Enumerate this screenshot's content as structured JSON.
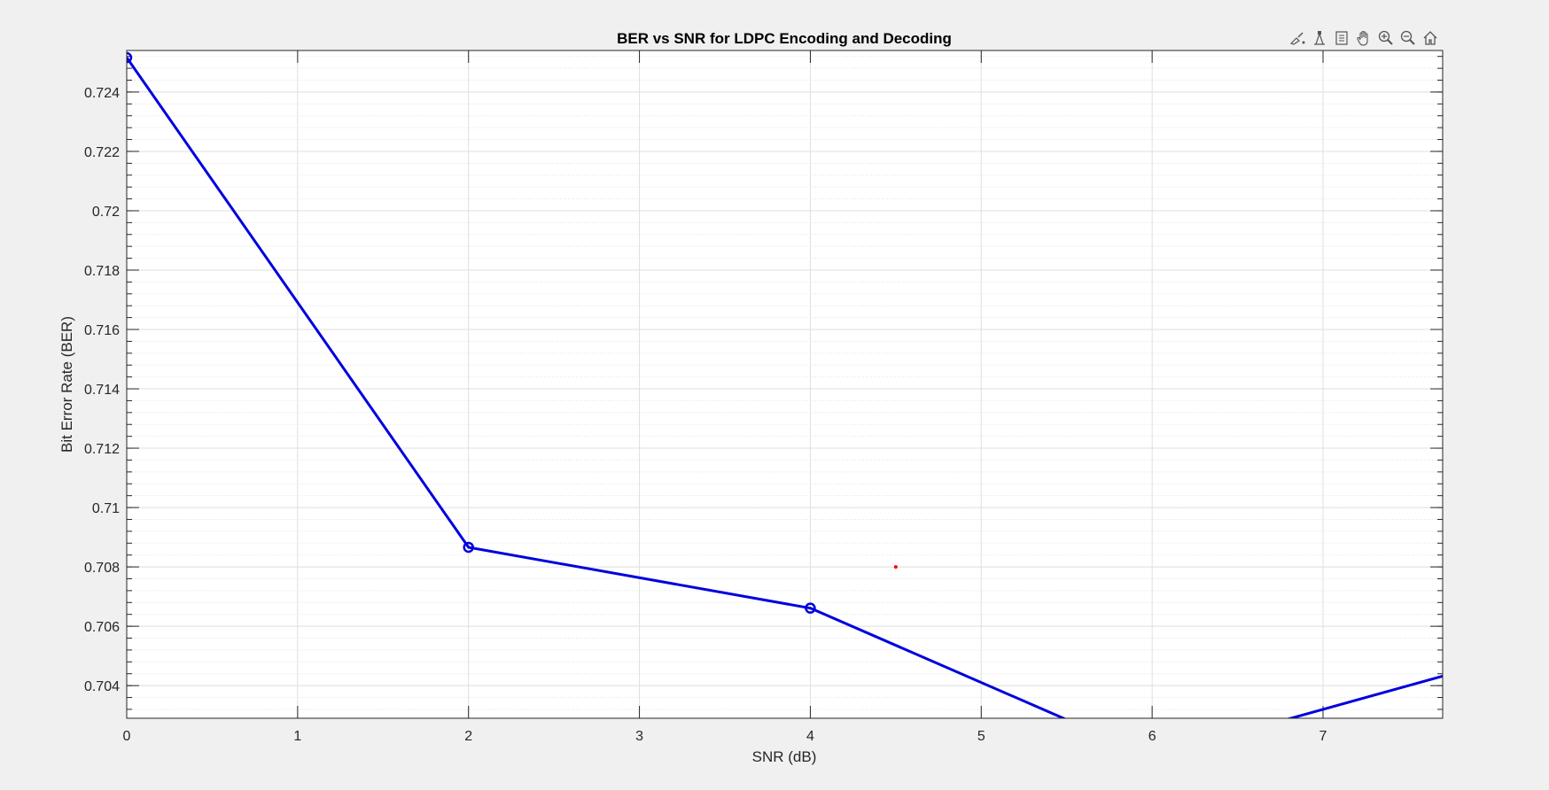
{
  "chart_data": {
    "type": "line",
    "title": "BER vs SNR for LDPC Encoding and Decoding",
    "xlabel": "SNR (dB)",
    "ylabel": "Bit Error Rate (BER)",
    "xlim": [
      0,
      7.7
    ],
    "ylim": [
      0.7029,
      0.7254
    ],
    "xticks": [
      0,
      1,
      2,
      3,
      4,
      5,
      6,
      7
    ],
    "yticks": [
      0.704,
      0.706,
      0.708,
      0.71,
      0.712,
      0.714,
      0.716,
      0.718,
      0.72,
      0.722,
      0.724
    ],
    "ytick_labels": [
      "0.704",
      "0.706",
      "0.708",
      "0.71",
      "0.712",
      "0.714",
      "0.716",
      "0.718",
      "0.72",
      "0.722",
      "0.724"
    ],
    "grid": true,
    "minor_grid": true,
    "series": [
      {
        "color": "#0000dd",
        "marker": "circle",
        "x": [
          0,
          2,
          4,
          6,
          8
        ],
        "y": [
          0.72516,
          0.70866,
          0.70661,
          0.7016,
          0.7048
        ]
      }
    ],
    "annotations": [
      {
        "type": "point",
        "x": 4.5,
        "y": 0.708,
        "color": "#ff0000"
      }
    ]
  },
  "toolbar": {
    "buttons": [
      {
        "name": "brush-icon"
      },
      {
        "name": "data-tips-icon"
      },
      {
        "name": "restore-view-icon"
      },
      {
        "name": "pan-icon"
      },
      {
        "name": "zoom-in-icon"
      },
      {
        "name": "zoom-out-icon"
      },
      {
        "name": "home-icon"
      }
    ]
  }
}
